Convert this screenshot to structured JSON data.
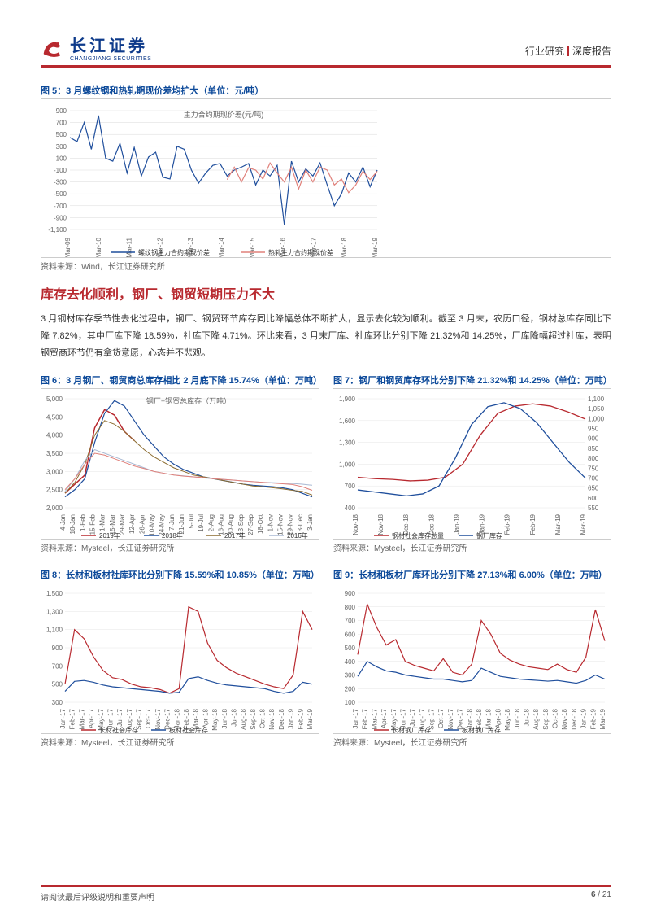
{
  "header": {
    "logo_cn": "长江证券",
    "logo_en": "CHANGJIANG SECURITIES",
    "right_primary": "行业研究",
    "right_secondary": "深度报告"
  },
  "section_title": "库存去化顺利，钢厂、钢贸短期压力不大",
  "body_paragraph": "3 月钢材库存季节性去化过程中，钢厂、钢贸环节库存同比降幅总体不断扩大，显示去化较为顺利。截至 3 月末，农历口径，钢材总库存同比下降 7.82%，其中厂库下降 18.59%，社库下降 4.71%。环比来看，3 月末厂库、社库环比分别下降 21.32%和 14.25%，厂库降幅超过社库，表明钢贸商环节仍有拿货意愿，心态并不悲观。",
  "fig5": {
    "title": "图 5：3 月螺纹钢和热轧期现价差均扩大（单位：元/吨）",
    "chart_title": "主力合约期现价差(元/吨)",
    "source": "资料来源：Wind，长江证券研究所",
    "type": "line",
    "ylim": [
      -1100,
      900
    ],
    "ytick_step": 200,
    "yticks": [
      -1100,
      -900,
      -700,
      -500,
      -300,
      -100,
      100,
      300,
      500,
      700,
      900
    ],
    "xlabels": [
      "Mar-09",
      "Mar-10",
      "Mar-11",
      "Mar-12",
      "Mar-13",
      "Mar-14",
      "Mar-15",
      "Mar-16",
      "Mar-17",
      "Mar-18",
      "Mar-19"
    ],
    "series": [
      {
        "name": "螺纹钢主力合约期现价差",
        "color": "#1f4e9c",
        "width": 1.2,
        "values": [
          450,
          380,
          700,
          250,
          820,
          100,
          50,
          350,
          -150,
          280,
          -200,
          120,
          200,
          -220,
          -250,
          300,
          250,
          -100,
          -320,
          -150,
          -20,
          10,
          -200,
          -100,
          -50,
          10,
          -350,
          -100,
          -200,
          -20,
          -1020,
          50,
          -300,
          -80,
          -200,
          20,
          -350,
          -700,
          -500,
          -150,
          -300,
          -50,
          -380,
          -100
        ]
      },
      {
        "name": "热轧主力合约期现价差",
        "color": "#e0807a",
        "width": 1.2,
        "offset": 22,
        "values": [
          -260,
          -50,
          -300,
          -60,
          -100,
          -250,
          20,
          -150,
          -300,
          -50,
          -420,
          -100,
          -300,
          -50,
          -100,
          -350,
          -250,
          -480,
          -350,
          -120,
          -260,
          -120
        ]
      }
    ],
    "legend_colors": {
      "rebar": "#1f4e9c",
      "hot": "#e0807a"
    },
    "background_color": "#ffffff",
    "grid_color": "#d9d9d9"
  },
  "fig6": {
    "title": "图 6：3 月钢厂、钢贸商总库存相比 2 月底下降 15.74%（单位：万吨）",
    "chart_title": "钢厂+钢贸总库存（万吨）",
    "source": "资料来源：Mysteel，长江证券研究所",
    "type": "line",
    "ylim": [
      2000,
      5000
    ],
    "ytick_step": 500,
    "yticks": [
      2000,
      2500,
      3000,
      3500,
      4000,
      4500,
      5000
    ],
    "xlabels": [
      "4-Jan",
      "18-Jan",
      "1-Feb",
      "15-Feb",
      "1-Mar",
      "15-Mar",
      "29-Mar",
      "12-Apr",
      "26-Apr",
      "10-May",
      "24-May",
      "7-Jun",
      "21-Jun",
      "5-Jul",
      "19-Jul",
      "2-Aug",
      "16-Aug",
      "30-Aug",
      "13-Sep",
      "27-Sep",
      "18-Oct",
      "1-Nov",
      "15-Nov",
      "29-Nov",
      "13-Dec",
      "3-Jan"
    ],
    "series": [
      {
        "name": "2019年",
        "color": "#b8292f",
        "width": 1.5,
        "values": [
          2400,
          2650,
          2900,
          4200,
          4700,
          4550,
          4100,
          3850
        ]
      },
      {
        "name": "2018年",
        "color": "#1f4e9c",
        "width": 1.2,
        "values": [
          2300,
          2500,
          2800,
          3800,
          4600,
          4950,
          4800,
          4400,
          4000,
          3700,
          3400,
          3200,
          3050,
          2950,
          2850,
          2800,
          2750,
          2700,
          2650,
          2620,
          2600,
          2580,
          2550,
          2500,
          2400,
          2300
        ]
      },
      {
        "name": "2017年",
        "color": "#8a6a2d",
        "width": 1.0,
        "values": [
          2400,
          2700,
          3200,
          4000,
          4400,
          4300,
          4100,
          3850,
          3600,
          3400,
          3250,
          3100,
          3000,
          2900,
          2850,
          2800,
          2750,
          2700,
          2650,
          2600,
          2580,
          2550,
          2520,
          2480,
          2450,
          2350
        ]
      },
      {
        "name": "2016年",
        "color": "#a8b9d3",
        "width": 1.0,
        "values": [
          2450,
          2800,
          3300,
          3600,
          3500,
          3400,
          3300,
          3200,
          3100,
          3000,
          2950,
          2900,
          2880,
          2850,
          2820,
          2800,
          2780,
          2760,
          2740,
          2720,
          2700,
          2690,
          2680,
          2670,
          2650,
          2620
        ]
      },
      {
        "name": "2015年",
        "color": "#e0807a",
        "width": 1.0,
        "values": [
          2500,
          2800,
          3200,
          3500,
          3450,
          3350,
          3250,
          3150,
          3080,
          3000,
          2950,
          2900,
          2870,
          2850,
          2830,
          2800,
          2780,
          2760,
          2740,
          2720,
          2700,
          2680,
          2660,
          2640,
          2580,
          2480
        ]
      }
    ],
    "legend_items": [
      {
        "label": "2019年",
        "color": "#b8292f"
      },
      {
        "label": "2018年",
        "color": "#1f4e9c"
      },
      {
        "label": "2017年",
        "color": "#8a6a2d"
      },
      {
        "label": "2016年",
        "color": "#a8b9d3"
      },
      {
        "label": "2015年",
        "color": "#e0807a"
      }
    ],
    "grid_color": "#e6e6e6"
  },
  "fig7": {
    "title": "图 7：钢厂和钢贸库存环比分别下降 21.32%和 14.25%（单位：万吨）",
    "source": "资料来源：Mysteel，长江证券研究所",
    "type": "line",
    "y1": {
      "lim": [
        400,
        1900
      ],
      "step": 300,
      "ticks": [
        400,
        700,
        1000,
        1300,
        1600,
        1900
      ]
    },
    "y2": {
      "lim": [
        550,
        1100
      ],
      "step": 50,
      "ticks": [
        550,
        600,
        650,
        700,
        750,
        800,
        850,
        900,
        950,
        1000,
        1050,
        1100
      ]
    },
    "xlabels": [
      "Nov-18",
      "Nov-18",
      "Dec-18",
      "Dec-18",
      "Jan-19",
      "Jan-19",
      "Feb-19",
      "Feb-19",
      "Mar-19",
      "Mar-19"
    ],
    "series": [
      {
        "name": "钢材社会库存总量",
        "color": "#b8292f",
        "axis": "y1",
        "width": 1.3,
        "values": [
          820,
          800,
          790,
          770,
          780,
          820,
          1000,
          1400,
          1700,
          1800,
          1830,
          1800,
          1720,
          1620
        ]
      },
      {
        "name": "钢厂库存",
        "color": "#1f4e9c",
        "axis": "y2",
        "width": 1.3,
        "values": [
          640,
          630,
          620,
          610,
          620,
          660,
          800,
          970,
          1060,
          1080,
          1050,
          980,
          880,
          780,
          700
        ]
      }
    ],
    "legend_items": [
      {
        "label": "钢材社会库存总量",
        "color": "#b8292f"
      },
      {
        "label": "钢厂库存",
        "color": "#1f4e9c"
      }
    ],
    "grid_color": "#e6e6e6"
  },
  "fig8": {
    "title": "图 8：长材和板材社库环比分别下降 15.59%和 10.85%（单位：万吨）",
    "source": "资料来源：Mysteel，长江证券研究所",
    "type": "line",
    "ylim": [
      300,
      1500
    ],
    "ytick_step": 200,
    "yticks": [
      300,
      500,
      700,
      900,
      1100,
      1300,
      1500
    ],
    "xlabels": [
      "Jan-17",
      "Feb-17",
      "Mar-17",
      "Apr-17",
      "May-17",
      "Jun-17",
      "Jul-17",
      "Aug-17",
      "Sep-17",
      "Oct-17",
      "Nov-17",
      "Dec-17",
      "Jan-18",
      "Feb-18",
      "Mar-18",
      "Apr-18",
      "May-18",
      "Jun-18",
      "Jul-18",
      "Aug-18",
      "Sep-18",
      "Oct-18",
      "Nov-18",
      "Dec-18",
      "Jan-19",
      "Feb-19",
      "Mar-19"
    ],
    "series": [
      {
        "name": "长材社会库存",
        "color": "#b8292f",
        "width": 1.2,
        "values": [
          500,
          1100,
          1000,
          800,
          650,
          570,
          550,
          500,
          470,
          460,
          440,
          400,
          450,
          1350,
          1300,
          950,
          760,
          680,
          620,
          580,
          540,
          500,
          470,
          450,
          600,
          1300,
          1100
        ]
      },
      {
        "name": "板材社会库存",
        "color": "#1f4e9c",
        "width": 1.2,
        "values": [
          420,
          530,
          540,
          520,
          490,
          470,
          460,
          450,
          440,
          430,
          420,
          400,
          410,
          560,
          580,
          540,
          510,
          490,
          480,
          470,
          460,
          450,
          420,
          400,
          420,
          520,
          500
        ]
      }
    ],
    "legend_items": [
      {
        "label": "长材社会库存",
        "color": "#b8292f"
      },
      {
        "label": "板材社会库存",
        "color": "#1f4e9c"
      }
    ],
    "grid_color": "#e6e6e6"
  },
  "fig9": {
    "title": "图 9：长材和板材厂库环比分别下降 27.13%和 6.00%（单位：万吨）",
    "source": "资料来源：Mysteel，长江证券研究所",
    "type": "line",
    "ylim": [
      100,
      900
    ],
    "ytick_step": 100,
    "yticks": [
      100,
      200,
      300,
      400,
      500,
      600,
      700,
      800,
      900
    ],
    "xlabels": [
      "Jan-17",
      "Feb-17",
      "Mar-17",
      "Apr-17",
      "May-17",
      "Jun-17",
      "Jul-17",
      "Aug-17",
      "Sep-17",
      "Oct-17",
      "Nov-17",
      "Dec-17",
      "Jan-18",
      "Feb-18",
      "Mar-18",
      "Apr-18",
      "May-18",
      "Jun-18",
      "Jul-18",
      "Aug-18",
      "Sep-18",
      "Oct-18",
      "Nov-18",
      "Dec-18",
      "Jan-19",
      "Feb-19",
      "Mar-19"
    ],
    "series": [
      {
        "name": "长材钢厂库存",
        "color": "#b8292f",
        "width": 1.2,
        "values": [
          450,
          820,
          650,
          520,
          560,
          400,
          370,
          350,
          330,
          420,
          320,
          300,
          380,
          700,
          600,
          460,
          410,
          380,
          360,
          350,
          340,
          380,
          340,
          320,
          430,
          780,
          550
        ]
      },
      {
        "name": "板材钢厂库存",
        "color": "#1f4e9c",
        "width": 1.2,
        "values": [
          290,
          400,
          360,
          330,
          320,
          300,
          290,
          280,
          270,
          270,
          260,
          250,
          260,
          350,
          320,
          290,
          280,
          270,
          265,
          260,
          255,
          260,
          250,
          240,
          260,
          300,
          270
        ]
      }
    ],
    "legend_items": [
      {
        "label": "长材钢厂库存",
        "color": "#b8292f"
      },
      {
        "label": "板材钢厂库存",
        "color": "#1f4e9c"
      }
    ],
    "grid_color": "#e6e6e6"
  },
  "footer": {
    "left": "请阅读最后评级说明和重要声明",
    "right_page": "6",
    "right_total": "21"
  },
  "colors": {
    "brand_red": "#b8292f",
    "brand_blue": "#0d3a8a",
    "title_blue": "#0d4a9a",
    "text": "#333"
  }
}
